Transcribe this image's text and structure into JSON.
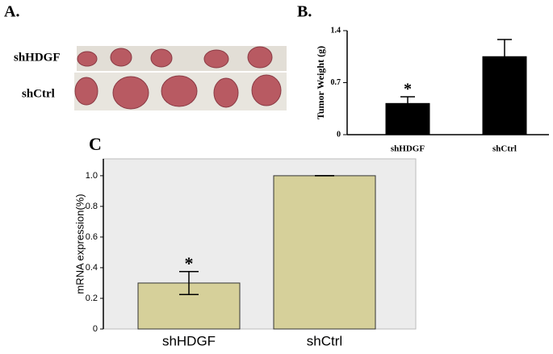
{
  "panel_labels": [
    "A.",
    "B.",
    "C"
  ],
  "photo": {
    "row_labels": [
      "shHDGF",
      "shCtrl"
    ]
  },
  "chart_data": [
    {
      "type": "bar",
      "categories": [
        "shHDGF",
        "shCtrl"
      ],
      "values": [
        0.42,
        1.05
      ],
      "errors": [
        0.09,
        0.23
      ],
      "color": "#000000",
      "y_label": "Tumor Weight (g)",
      "ylim": [
        0,
        1.4
      ],
      "yticks": [
        0,
        0.7,
        1.4
      ],
      "annotations": [
        "*"
      ],
      "grid": false
    },
    {
      "type": "bar",
      "categories": [
        "shHDGF",
        "shCtrl"
      ],
      "values": [
        0.3,
        1.0
      ],
      "errors": [
        0.075,
        0
      ],
      "color": "#d6d09a",
      "y_label": "mRNA expression(%)",
      "ylim": [
        0,
        1.11
      ],
      "yticks": [
        0,
        0.2,
        0.4,
        0.6,
        0.8,
        {
          "value": 1,
          "label": "1.0"
        }
      ],
      "annotations": [
        "*"
      ],
      "grid": false
    }
  ]
}
